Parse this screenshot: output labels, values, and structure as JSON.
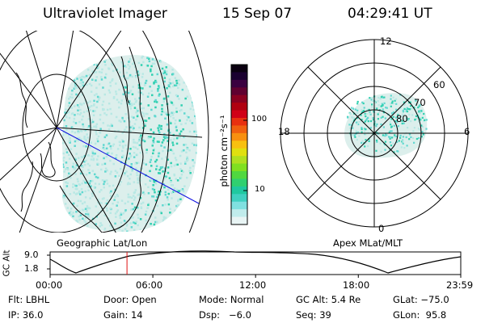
{
  "header": {
    "title": "Ultraviolet Imager",
    "date": "15 Sep 07",
    "time": "04:29:41 UT"
  },
  "geo_panel": {
    "label": "Geographic Lat/Lon"
  },
  "polar_panel": {
    "label": "Apex MLat/MLT",
    "mlt_labels": [
      "12",
      "18",
      "6",
      "0"
    ],
    "mlat_labels": [
      "60",
      "70",
      "80"
    ]
  },
  "colorbar": {
    "unit_label": "photon cm⁻²s⁻¹",
    "ticks": [
      "100",
      "10"
    ],
    "colors": [
      "#0a0010",
      "#1a0030",
      "#3a0040",
      "#600030",
      "#8a0020",
      "#b00010",
      "#d00018",
      "#e83010",
      "#f06010",
      "#f89010",
      "#f8c010",
      "#e0e010",
      "#b0e020",
      "#80e020",
      "#50d840",
      "#30d070",
      "#20c8a0",
      "#40d0c0",
      "#80e0e0",
      "#c0ecec",
      "#e8f4f4"
    ]
  },
  "altitude_plot": {
    "ylabel": "GC Alt",
    "yticks": [
      "9.0",
      "1.8"
    ],
    "xticks": [
      "00:00",
      "06:00",
      "12:00",
      "18:00",
      "23:59"
    ],
    "current_time_hours": 4.49,
    "cursor_color": "#e01010"
  },
  "info_rows": [
    [
      "Flt: LBHL",
      "Door: Open",
      "Mode: Normal",
      "GC Alt: 5.4 Re",
      "GLat: −75.0"
    ],
    [
      "IP: 36.0",
      "Gain: 14",
      "Dsp:   −6.0",
      "Seq: 39",
      "GLon:  95.8"
    ]
  ],
  "colors": {
    "bright": "#30d0b0",
    "mid": "#60d8d0",
    "dim": "#b8e8e4",
    "faint": "#dcefec",
    "line": "#000000",
    "blue_line": "#1010e0"
  }
}
